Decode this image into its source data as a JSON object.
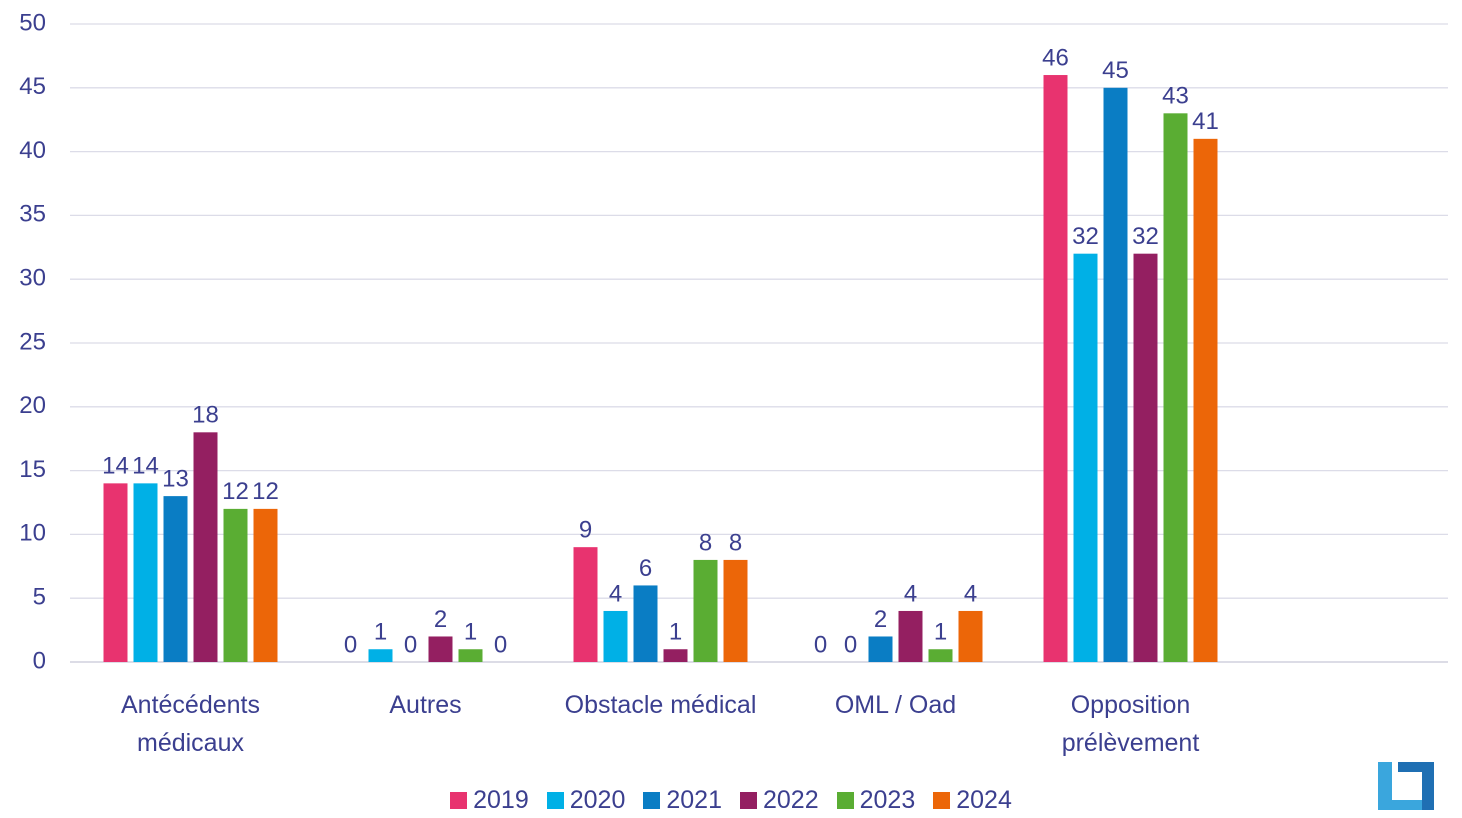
{
  "chart_data": {
    "type": "bar",
    "categories": [
      "Antécédents médicaux",
      "Autres",
      "Obstacle médical",
      "OML / Oad",
      "Opposition prélèvement"
    ],
    "series": [
      {
        "name": "2019",
        "color": "#e8336f",
        "values": [
          14,
          0,
          9,
          0,
          46
        ]
      },
      {
        "name": "2020",
        "color": "#00b0e6",
        "values": [
          14,
          1,
          4,
          0,
          32
        ]
      },
      {
        "name": "2021",
        "color": "#0a7dc4",
        "values": [
          13,
          0,
          6,
          2,
          45
        ]
      },
      {
        "name": "2022",
        "color": "#941f61",
        "values": [
          18,
          2,
          1,
          4,
          32
        ]
      },
      {
        "name": "2023",
        "color": "#5aad33",
        "values": [
          12,
          1,
          8,
          1,
          43
        ]
      },
      {
        "name": "2024",
        "color": "#ec6608",
        "values": [
          12,
          0,
          8,
          4,
          41
        ]
      }
    ],
    "ylim": [
      0,
      50
    ],
    "yticks": [
      0,
      5,
      10,
      15,
      20,
      25,
      30,
      35,
      40,
      45,
      50
    ],
    "grid": true,
    "legend": "bottom"
  }
}
